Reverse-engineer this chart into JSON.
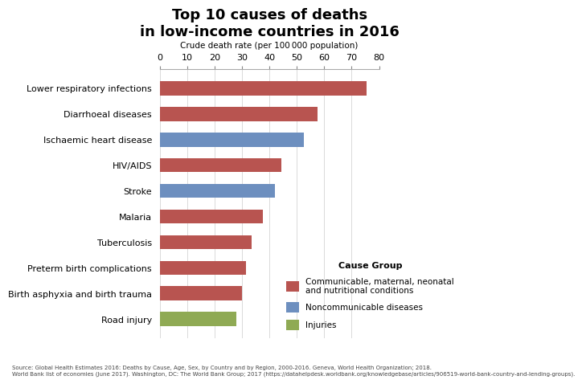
{
  "title": "Top 10 causes of deaths\nin low-income countries in 2016",
  "xlabel": "Crude death rate (per 100 000 population)",
  "categories": [
    "Lower respiratory infections",
    "Diarrhoeal diseases",
    "Ischaemic heart disease",
    "HIV/AIDS",
    "Stroke",
    "Malaria",
    "Tuberculosis",
    "Preterm birth complications",
    "Birth asphyxia and birth trauma",
    "Road injury"
  ],
  "values": [
    75.5,
    57.5,
    52.5,
    44.5,
    42.0,
    37.5,
    33.5,
    31.5,
    30.0,
    28.0
  ],
  "colors": [
    "#b85450",
    "#b85450",
    "#6d8fbf",
    "#b85450",
    "#6d8fbf",
    "#b85450",
    "#b85450",
    "#b85450",
    "#b85450",
    "#8faa54"
  ],
  "legend_labels": [
    "Communicable, maternal, neonatal\nand nutritional conditions",
    "Noncommunicable diseases",
    "Injuries"
  ],
  "legend_colors": [
    "#b85450",
    "#6d8fbf",
    "#8faa54"
  ],
  "legend_title": "Cause Group",
  "xlim": [
    0,
    80
  ],
  "xticks": [
    0,
    10,
    20,
    30,
    40,
    50,
    60,
    70,
    80
  ],
  "source_text": "Source: Global Health Estimates 2016: Deaths by Cause, Age, Sex, by Country and by Region, 2000-2016. Geneva, World Health Organization; 2018.\nWorld Bank list of economies (June 2017). Washington, DC: The World Bank Group; 2017 (https://datahelpdesk.worldbank.org/knowledgebase/articles/906519-world-bank-country-and-lending-groups).",
  "background_color": "#ffffff",
  "title_fontsize": 13,
  "axis_label_fontsize": 7.5,
  "tick_fontsize": 8,
  "source_fontsize": 5
}
